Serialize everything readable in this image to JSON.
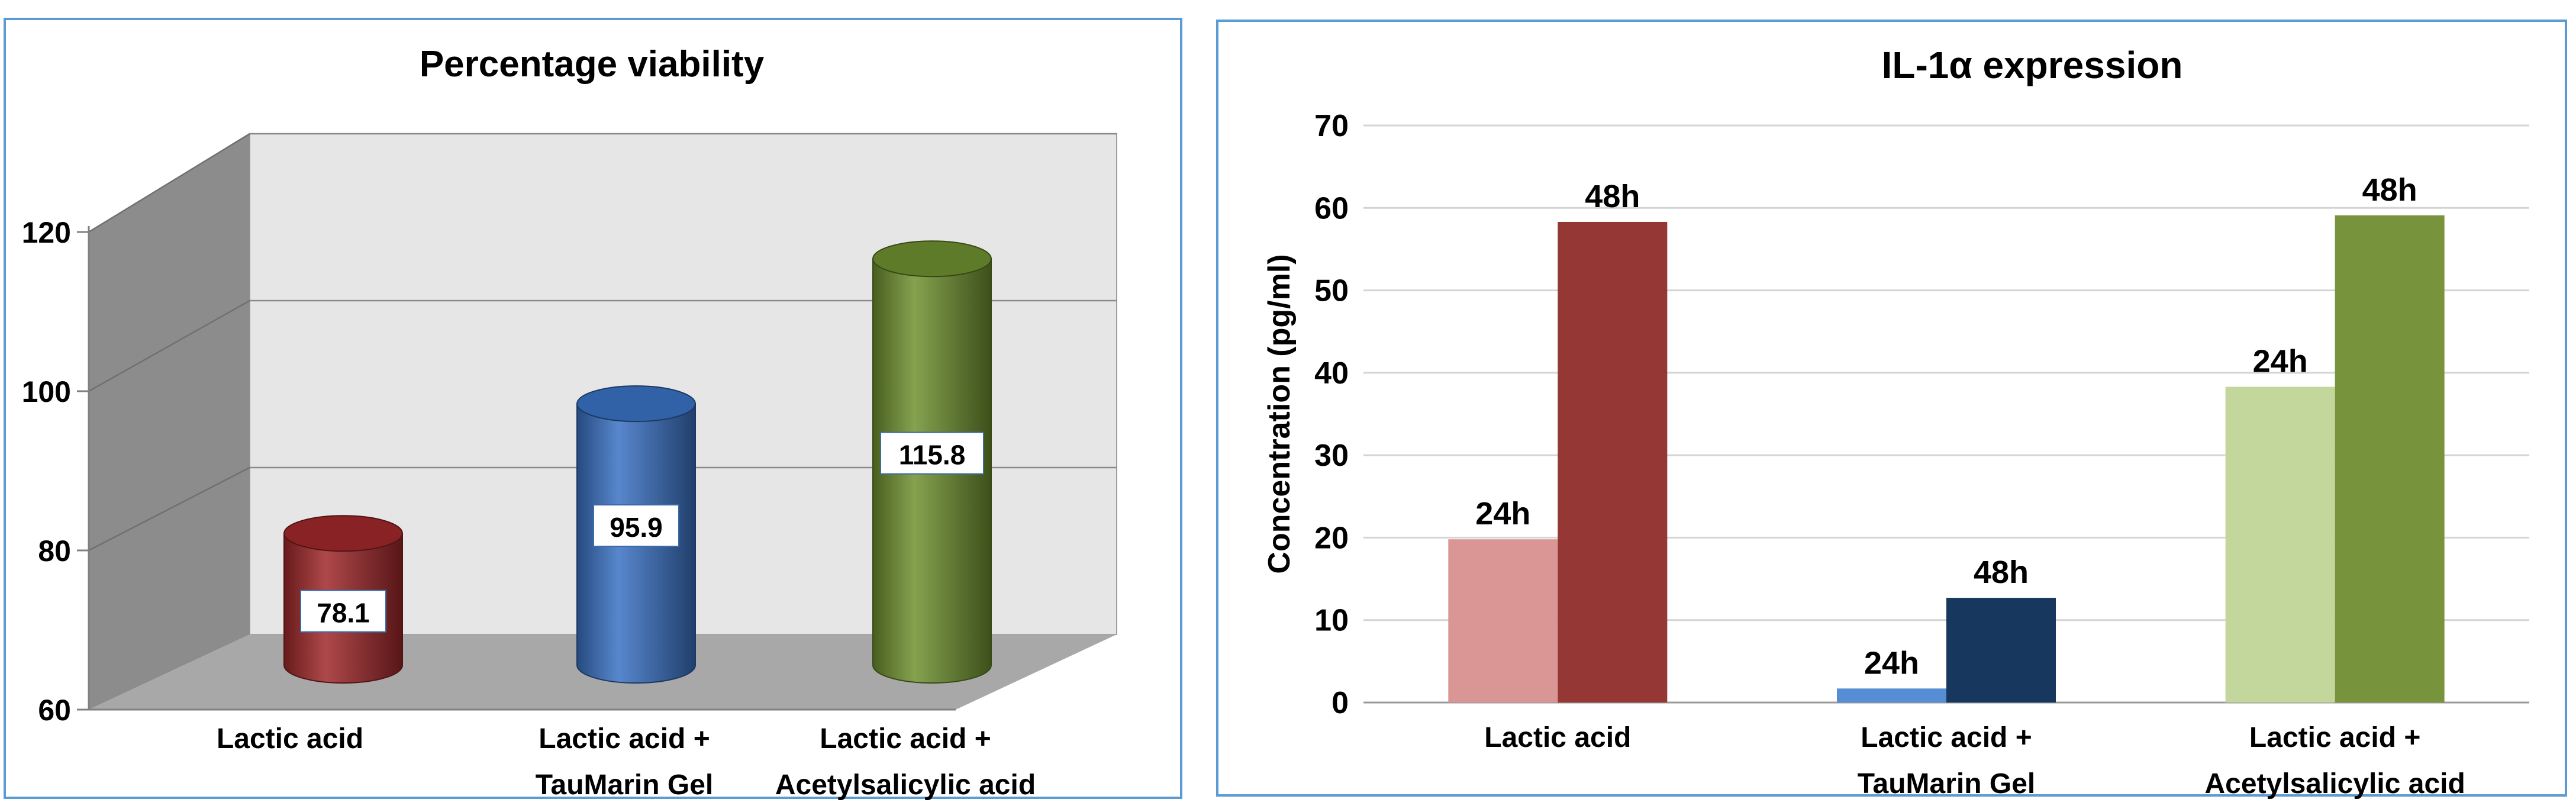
{
  "chart_data": [
    {
      "type": "bar",
      "style": "3d-cylinder",
      "title": "Percentage viability",
      "categories": [
        [
          "Lactic acid"
        ],
        [
          "Lactic acid +",
          "TauMarin Gel"
        ],
        [
          "Lactic acid +",
          "Acetylsalicylic acid"
        ]
      ],
      "values": [
        78.1,
        95.9,
        115.8
      ],
      "value_labels": [
        "78.1",
        "95.9",
        "115.8"
      ],
      "colors": [
        "#a0282a",
        "#3a72c4",
        "#6f9130"
      ],
      "ylim": [
        60,
        120
      ],
      "yticks": [
        60,
        80,
        100,
        120
      ],
      "xlabel": "",
      "ylabel": "",
      "grid": true
    },
    {
      "type": "bar",
      "title": "IL-1α expression",
      "ylabel": "Concentration (pg/ml)",
      "xlabel": "",
      "categories": [
        [
          "Lactic acid"
        ],
        [
          "Lactic acid +",
          "TauMarin Gel"
        ],
        [
          "Lactic acid +",
          "Acetylsalicylic acid"
        ]
      ],
      "bars": [
        [
          {
            "label": "24h",
            "value": 19.8,
            "color": "#d99694"
          },
          {
            "label": "48h",
            "value": 58.3,
            "color": "#953735"
          }
        ],
        [
          {
            "label": "24h",
            "value": 1.7,
            "color": "#558ed5"
          },
          {
            "label": "48h",
            "value": 12.7,
            "color": "#17375e"
          }
        ],
        [
          {
            "label": "24h",
            "value": 38.3,
            "color": "#c3d69b"
          },
          {
            "label": "48h",
            "value": 59.1,
            "color": "#77933c"
          }
        ]
      ],
      "ylim": [
        0,
        70
      ],
      "yticks": [
        0,
        10,
        20,
        30,
        40,
        50,
        60,
        70
      ],
      "grid": true
    }
  ]
}
